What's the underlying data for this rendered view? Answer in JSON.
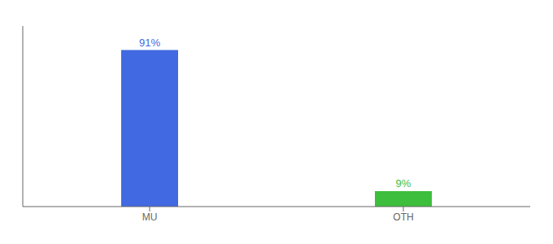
{
  "chart_data": {
    "type": "bar",
    "categories": [
      "MU",
      "OTH"
    ],
    "values": [
      91,
      9
    ],
    "value_labels": [
      "91%",
      "9%"
    ],
    "colors": [
      "#4169e1",
      "#3dbf3d"
    ],
    "ylim": [
      0,
      105
    ],
    "grid": false,
    "data_labels": true,
    "tick_labels": "x"
  }
}
